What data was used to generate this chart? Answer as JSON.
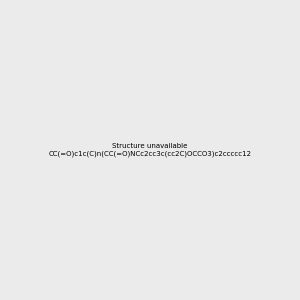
{
  "smiles": "CC(=O)c1c(C)n(CC(=O)NCc2cc3c(cc2C)OCCO3)c2ccccc12",
  "background_color": "#ebebeb",
  "img_size": [
    300,
    300
  ]
}
